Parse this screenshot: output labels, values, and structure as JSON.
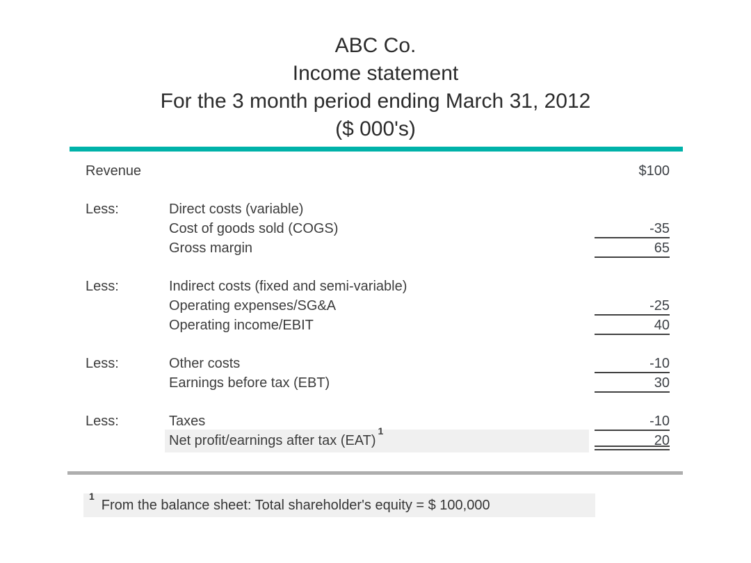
{
  "page": {
    "accent_color": "#00b2a9",
    "divider_color": "#aeaeae",
    "highlight_color": "#f0f0f0"
  },
  "header": {
    "company": "ABC Co.",
    "statement_type": "Income statement",
    "period": "For the 3 month period ending March 31, 2012",
    "units": "($ 000's)"
  },
  "statement": {
    "rows": [
      {
        "c1": "Revenue",
        "c2": "",
        "amount": "$100",
        "underline": "none"
      },
      {
        "c1": "Less:",
        "c2": "Direct costs (variable)",
        "amount": "",
        "underline": "none"
      },
      {
        "c1": "",
        "c2": "Cost of goods sold (COGS)",
        "amount": "-35",
        "underline": "single"
      },
      {
        "c1": "",
        "c2": "Gross margin",
        "amount": "65",
        "underline": "single"
      },
      {
        "c1": "Less:",
        "c2": "Indirect costs (fixed and semi-variable)",
        "amount": "",
        "underline": "none"
      },
      {
        "c1": "",
        "c2": "Operating expenses/SG&A",
        "amount": "-25",
        "underline": "single"
      },
      {
        "c1": "",
        "c2": "Operating income/EBIT",
        "amount": "40",
        "underline": "single"
      },
      {
        "c1": "Less:",
        "c2": "Other costs",
        "amount": "-10",
        "underline": "single"
      },
      {
        "c1": "",
        "c2": "Earnings before tax (EBT)",
        "amount": "30",
        "underline": "single"
      },
      {
        "c1": "Less:",
        "c2": "Taxes",
        "amount": "-10",
        "underline": "single"
      },
      {
        "c1": "",
        "c2": "Net profit/earnings after tax (EAT)",
        "footnote_ref": "1",
        "amount": "20",
        "underline": "double",
        "highlighted": true
      }
    ]
  },
  "footnote": {
    "ref": "1",
    "text": "From the balance sheet: Total shareholder's equity = $ 100,000"
  }
}
